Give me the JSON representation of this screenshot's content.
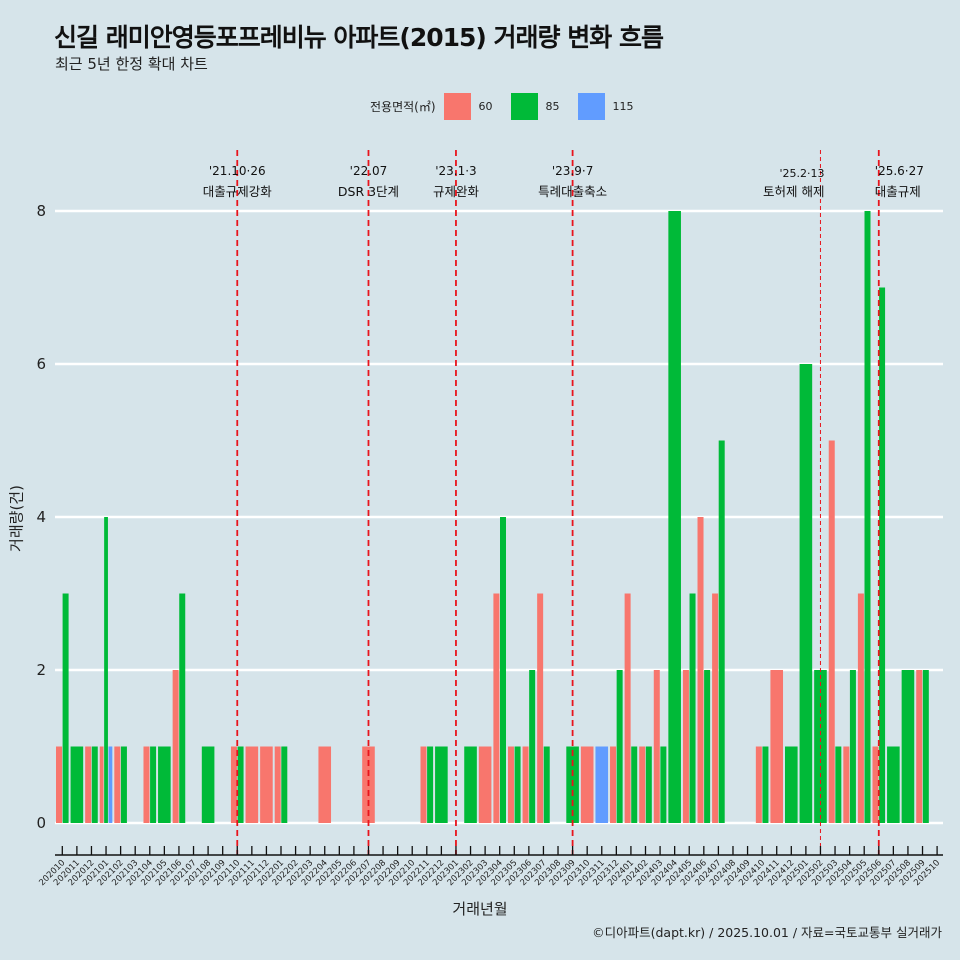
{
  "header": {
    "title": "신길 래미안영등포프레비뉴 아파트(2015) 거래량 변화 흐름",
    "subtitle": "최근 5년 한정 확대 차트"
  },
  "legend": {
    "title": "전용면적(㎡)",
    "items": [
      {
        "label": "60",
        "color": "#f8766d"
      },
      {
        "label": "85",
        "color": "#00ba38"
      },
      {
        "label": "115",
        "color": "#619cff"
      }
    ]
  },
  "caption": "©디아파트(dapt.kr) / 2025.10.01 / 자료=국토교통부 실거래가",
  "chart_data": {
    "type": "bar",
    "title": "신길 래미안영등포프레비뉴 아파트(2015) 거래량 변화 흐름",
    "subtitle": "최근 5년 한정 확대 차트",
    "xlabel": "거래년월",
    "ylabel": "거래량(건)",
    "ylim": [
      0,
      8
    ],
    "yticks": [
      0,
      2,
      4,
      6,
      8
    ],
    "grid": true,
    "legend_position": "top",
    "categories": [
      "202010",
      "202011",
      "202012",
      "202101",
      "202102",
      "202103",
      "202104",
      "202105",
      "202106",
      "202107",
      "202108",
      "202109",
      "202110",
      "202111",
      "202112",
      "202201",
      "202202",
      "202203",
      "202204",
      "202205",
      "202206",
      "202207",
      "202208",
      "202209",
      "202210",
      "202211",
      "202212",
      "202301",
      "202302",
      "202303",
      "202304",
      "202305",
      "202306",
      "202307",
      "202308",
      "202309",
      "202310",
      "202311",
      "202312",
      "202401",
      "202402",
      "202403",
      "202404",
      "202405",
      "202406",
      "202407",
      "202408",
      "202409",
      "202410",
      "202411",
      "202412",
      "202501",
      "202502",
      "202503",
      "202504",
      "202505",
      "202506",
      "202507",
      "202508",
      "202509",
      "202510"
    ],
    "series": [
      {
        "name": "60",
        "color": "#f8766d",
        "values": [
          1,
          0,
          1,
          1,
          1,
          0,
          1,
          0,
          2,
          0,
          0,
          0,
          1,
          1,
          1,
          1,
          0,
          0,
          1,
          0,
          0,
          1,
          0,
          0,
          0,
          1,
          0,
          0,
          0,
          1,
          3,
          1,
          1,
          3,
          0,
          0,
          1,
          0,
          1,
          3,
          1,
          2,
          0,
          2,
          4,
          3,
          0,
          0,
          1,
          2,
          0,
          0,
          0,
          5,
          1,
          3,
          1,
          0,
          0,
          2,
          0
        ]
      },
      {
        "name": "85",
        "color": "#00ba38",
        "values": [
          3,
          1,
          1,
          4,
          1,
          0,
          1,
          1,
          3,
          0,
          1,
          0,
          1,
          0,
          0,
          1,
          0,
          0,
          0,
          0,
          0,
          0,
          0,
          0,
          0,
          1,
          1,
          0,
          1,
          0,
          4,
          1,
          2,
          1,
          0,
          1,
          0,
          0,
          2,
          1,
          1,
          1,
          8,
          3,
          2,
          5,
          0,
          0,
          1,
          0,
          1,
          6,
          2,
          1,
          2,
          8,
          7,
          1,
          2,
          2,
          0
        ]
      },
      {
        "name": "115",
        "color": "#619cff",
        "values": [
          0,
          0,
          0,
          1,
          0,
          0,
          0,
          0,
          0,
          0,
          0,
          0,
          0,
          0,
          0,
          0,
          0,
          0,
          0,
          0,
          0,
          0,
          0,
          0,
          0,
          0,
          0,
          0,
          0,
          0,
          0,
          0,
          0,
          0,
          0,
          0,
          0,
          1,
          0,
          0,
          0,
          0,
          0,
          0,
          0,
          0,
          0,
          0,
          0,
          0,
          0,
          0,
          0,
          0,
          0,
          0,
          0,
          0,
          0,
          0,
          0
        ]
      }
    ],
    "annotations": [
      {
        "x": "202110",
        "date": "'21.10·26",
        "label": "대출규제강화"
      },
      {
        "x": "202207",
        "date": "'22.07",
        "label": "DSR 3단계"
      },
      {
        "x": "202301",
        "date": "'23.1·3",
        "label": "규제완화"
      },
      {
        "x": "202309",
        "date": "'23.9·7",
        "label": "특례대출축소"
      },
      {
        "x": "202502",
        "date": "'25.2·13",
        "label": "토허제 해제"
      },
      {
        "x": "202506",
        "date": "'25.6·27",
        "label": "대출규제"
      }
    ]
  }
}
